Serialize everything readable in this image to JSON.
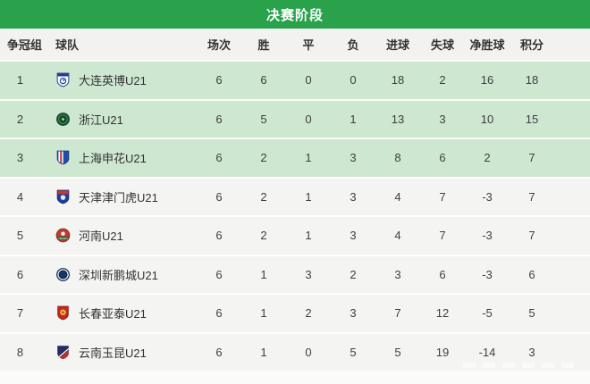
{
  "header": {
    "title": "决赛阶段"
  },
  "table": {
    "columns": [
      "争冠组",
      "球队",
      "场次",
      "胜",
      "平",
      "负",
      "进球",
      "失球",
      "净胜球",
      "积分"
    ],
    "rows": [
      {
        "rank": "1",
        "team": "大连英博U21",
        "badge": "dalian-yingbo",
        "highlight": true,
        "stats": [
          "6",
          "6",
          "0",
          "0",
          "18",
          "2",
          "16",
          "18"
        ]
      },
      {
        "rank": "2",
        "team": "浙江U21",
        "badge": "zhejiang",
        "highlight": true,
        "stats": [
          "6",
          "5",
          "0",
          "1",
          "13",
          "3",
          "10",
          "15"
        ]
      },
      {
        "rank": "3",
        "team": "上海申花U21",
        "badge": "shanghai-shenhua",
        "highlight": true,
        "stats": [
          "6",
          "2",
          "1",
          "3",
          "8",
          "6",
          "2",
          "7"
        ]
      },
      {
        "rank": "4",
        "team": "天津津门虎U21",
        "badge": "tianjin-jinmenhu",
        "highlight": false,
        "stats": [
          "6",
          "2",
          "1",
          "3",
          "4",
          "7",
          "-3",
          "7"
        ]
      },
      {
        "rank": "5",
        "team": "河南U21",
        "badge": "henan",
        "highlight": false,
        "stats": [
          "6",
          "2",
          "1",
          "3",
          "4",
          "7",
          "-3",
          "7"
        ]
      },
      {
        "rank": "6",
        "team": "深圳新鹏城U21",
        "badge": "shenzhen-pengcity",
        "highlight": false,
        "stats": [
          "6",
          "1",
          "3",
          "2",
          "3",
          "6",
          "-3",
          "6"
        ]
      },
      {
        "rank": "7",
        "team": "长春亚泰U21",
        "badge": "changchun-yatai",
        "highlight": false,
        "stats": [
          "6",
          "1",
          "2",
          "3",
          "7",
          "12",
          "-5",
          "5"
        ]
      },
      {
        "rank": "8",
        "team": "云南玉昆U21",
        "badge": "yunnan-yukun",
        "highlight": false,
        "stats": [
          "6",
          "1",
          "0",
          "5",
          "5",
          "19",
          "-14",
          "3"
        ]
      }
    ]
  },
  "colors": {
    "banner_green": "#2aa24b",
    "highlight_row_green": "#cde7d1",
    "normal_row_gray": "#f4f4f2",
    "header_row_bg": "#f2f2f0"
  }
}
